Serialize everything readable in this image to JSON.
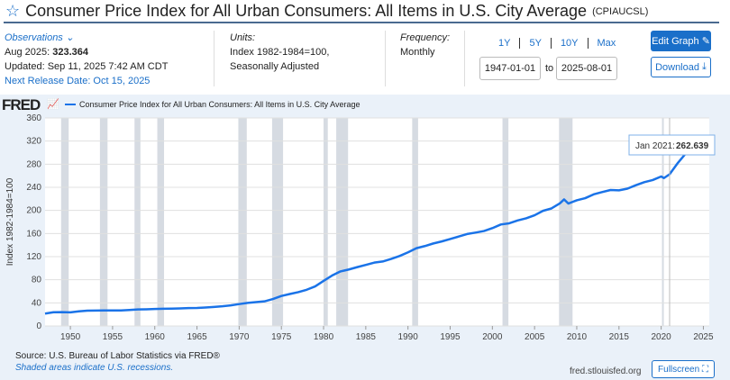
{
  "header": {
    "title": "Consumer Price Index for All Urban Consumers: All Items in U.S. City Average",
    "code": "(CPIAUCSL)"
  },
  "observations": {
    "label": "Observations",
    "latest_label": "Aug 2025:",
    "latest_value": "323.364",
    "updated": "Updated: Sep 11, 2025 7:42 AM CDT",
    "next_release": "Next Release Date: Oct 15, 2025"
  },
  "units": {
    "label": "Units:",
    "line1": "Index 1982-1984=100,",
    "line2": "Seasonally Adjusted"
  },
  "frequency": {
    "label": "Frequency:",
    "value": "Monthly"
  },
  "range": {
    "buttons": [
      "1Y",
      "5Y",
      "10Y",
      "Max"
    ],
    "start": "1947-01-01",
    "to": "to",
    "end": "2025-08-01"
  },
  "actions": {
    "edit": "Edit Graph",
    "download": "Download",
    "fullscreen": "Fullscreen"
  },
  "logo": "FRED",
  "footer": {
    "source": "Source: U.S. Bureau of Labor Statistics via FRED®",
    "shaded": "Shaded areas indicate U.S. recessions.",
    "url": "fred.stlouisfed.org"
  },
  "colors": {
    "line": "#1a73e8",
    "recession": "#d6dbe2"
  },
  "chart_data": {
    "type": "line",
    "ylabel": "Index 1982-1984=100",
    "ylim": [
      0,
      360
    ],
    "xlim": [
      1947,
      2025.7
    ],
    "yticks": [
      0,
      40,
      80,
      120,
      160,
      200,
      240,
      280,
      320,
      360
    ],
    "xticks": [
      1950,
      1955,
      1960,
      1965,
      1970,
      1975,
      1980,
      1985,
      1990,
      1995,
      2000,
      2005,
      2010,
      2015,
      2020,
      2025
    ],
    "grid": true,
    "legend": "top-left",
    "series": [
      {
        "name": "Consumer Price Index for All Urban Consumers: All Items in U.S. City Average",
        "x": [
          1947,
          1948,
          1949,
          1950,
          1951,
          1952,
          1953,
          1954,
          1955,
          1956,
          1957,
          1958,
          1959,
          1960,
          1961,
          1962,
          1963,
          1964,
          1965,
          1966,
          1967,
          1968,
          1969,
          1970,
          1971,
          1972,
          1973,
          1974,
          1975,
          1976,
          1977,
          1978,
          1979,
          1980,
          1981,
          1982,
          1983,
          1984,
          1985,
          1986,
          1987,
          1988,
          1989,
          1990,
          1991,
          1992,
          1993,
          1994,
          1995,
          1996,
          1997,
          1998,
          1999,
          2000,
          2001,
          2002,
          2003,
          2004,
          2005,
          2006,
          2007,
          2008,
          2008.5,
          2009,
          2010,
          2011,
          2012,
          2013,
          2014,
          2015,
          2016,
          2017,
          2018,
          2019,
          2020,
          2020.33,
          2021,
          2022,
          2023,
          2024,
          2025,
          2025.58
        ],
        "y": [
          21.5,
          23.7,
          24.0,
          23.5,
          25.4,
          26.5,
          26.6,
          26.9,
          26.8,
          26.9,
          27.7,
          28.6,
          28.9,
          29.4,
          29.8,
          30.0,
          30.4,
          30.9,
          31.2,
          31.9,
          32.9,
          34.1,
          35.7,
          37.9,
          39.9,
          41.3,
          42.6,
          46.6,
          51.9,
          55.3,
          58.5,
          62.7,
          68.5,
          78.0,
          87.2,
          94.4,
          97.8,
          101.9,
          105.7,
          109.6,
          111.6,
          116.0,
          121.1,
          127.4,
          134.6,
          138.3,
          142.8,
          146.3,
          150.5,
          154.7,
          159.1,
          161.6,
          164.3,
          169.3,
          175.6,
          177.7,
          182.6,
          186.3,
          191.6,
          199.3,
          203.4,
          212.2,
          219.0,
          211.9,
          217.5,
          221.2,
          227.8,
          231.7,
          235.3,
          234.7,
          237.7,
          243.6,
          248.9,
          252.6,
          258.7,
          256.0,
          262.6,
          282.6,
          300.0,
          309.8,
          317.6,
          323.4
        ]
      }
    ],
    "recessions": [
      [
        1948.9,
        1949.8
      ],
      [
        1953.5,
        1954.4
      ],
      [
        1957.6,
        1958.3
      ],
      [
        1960.3,
        1961.1
      ],
      [
        1969.9,
        1970.9
      ],
      [
        1973.9,
        1975.2
      ],
      [
        1980.0,
        1980.5
      ],
      [
        1981.5,
        1982.9
      ],
      [
        1990.5,
        1991.2
      ],
      [
        2001.2,
        2001.9
      ],
      [
        2007.9,
        2009.5
      ],
      [
        2020.1,
        2020.3
      ]
    ],
    "tooltip": {
      "label": "Jan 2021:",
      "value": "262.639",
      "x": 2021,
      "y": 262.639
    }
  }
}
